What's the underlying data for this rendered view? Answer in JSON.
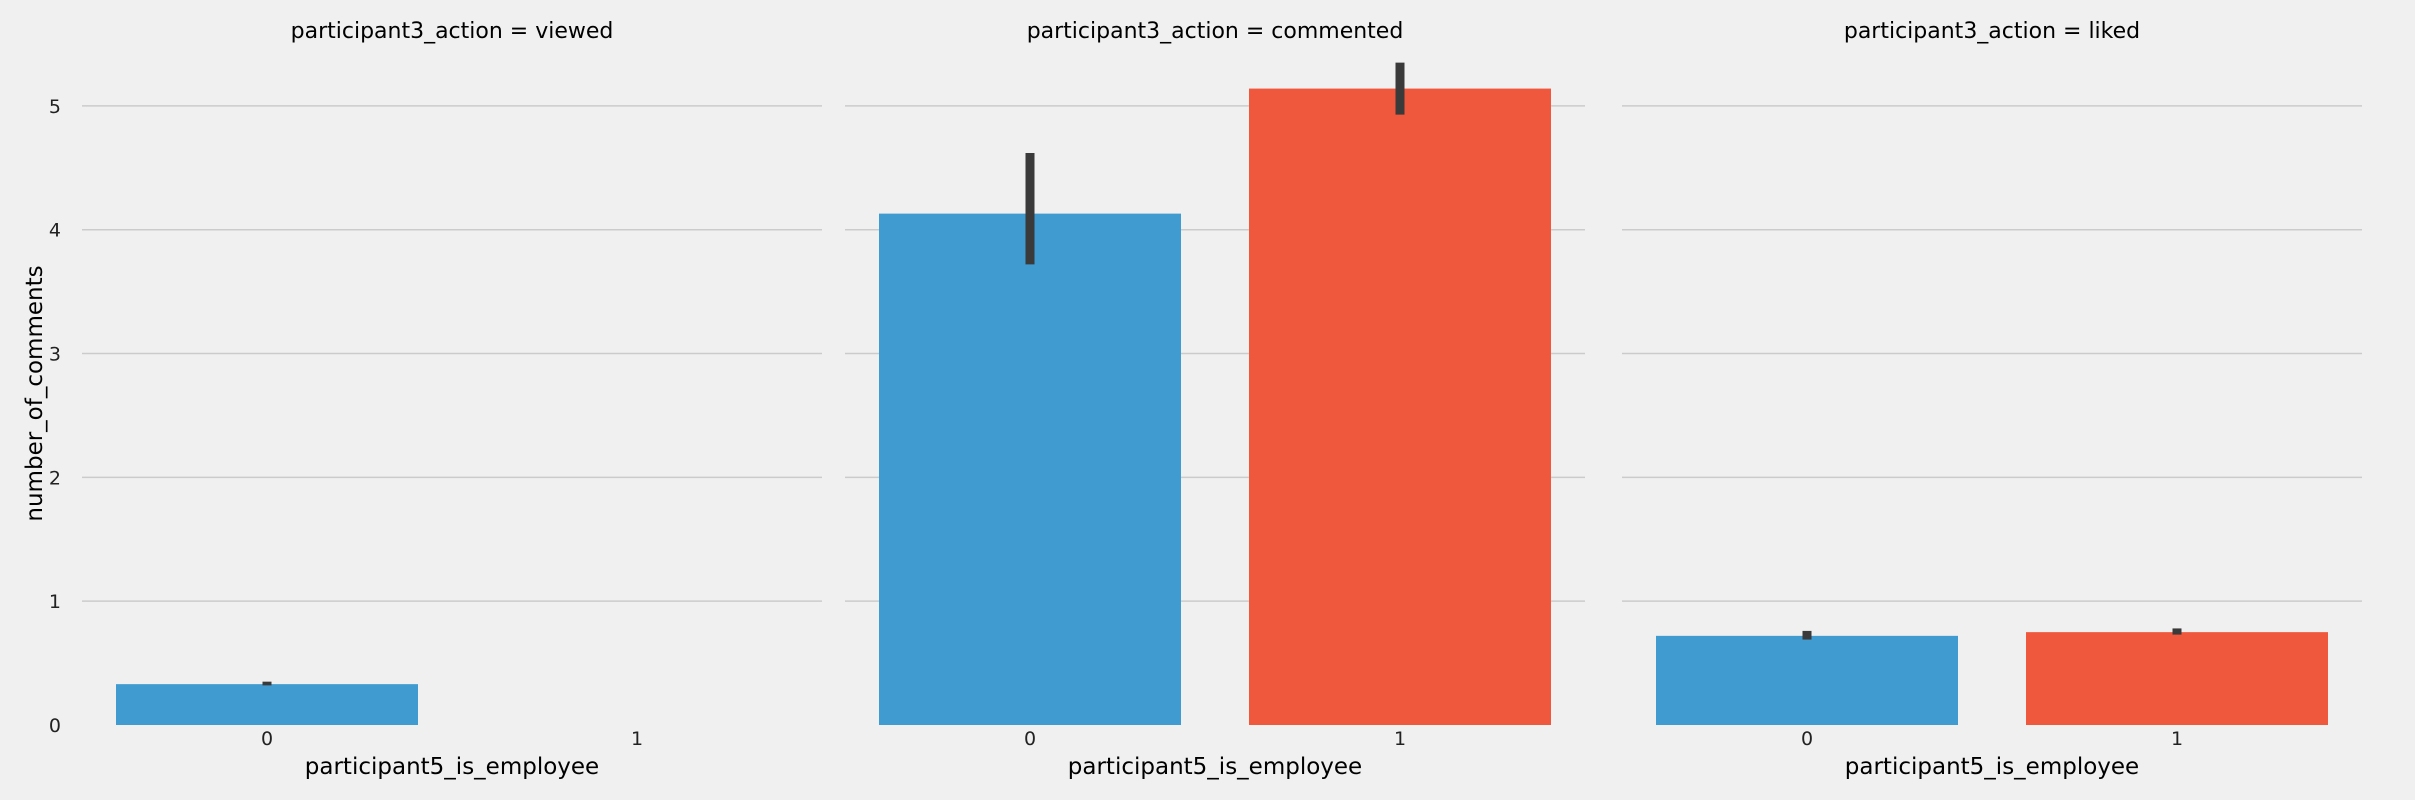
{
  "chart_data": {
    "type": "bar",
    "ylabel": "number_of_comments",
    "xlabel": "participant5_is_employee",
    "categories": [
      "0",
      "1"
    ],
    "ylim": [
      0,
      5.5
    ],
    "yticks": [
      0,
      1,
      2,
      3,
      4,
      5
    ],
    "grid": true,
    "colors": [
      "#3f9bd0",
      "#f0583d"
    ],
    "errorbar_color": "#3a3a3a",
    "panels": [
      {
        "title": "participant3_action = viewed",
        "values": [
          0.33,
          null
        ],
        "errors": [
          [
            0.32,
            0.35
          ],
          null
        ]
      },
      {
        "title": "participant3_action = commented",
        "values": [
          4.13,
          5.14
        ],
        "errors": [
          [
            3.72,
            4.62
          ],
          [
            4.93,
            5.35
          ]
        ]
      },
      {
        "title": "participant3_action = liked",
        "values": [
          0.72,
          0.75
        ],
        "errors": [
          [
            0.69,
            0.76
          ],
          [
            0.73,
            0.78
          ]
        ]
      }
    ]
  }
}
